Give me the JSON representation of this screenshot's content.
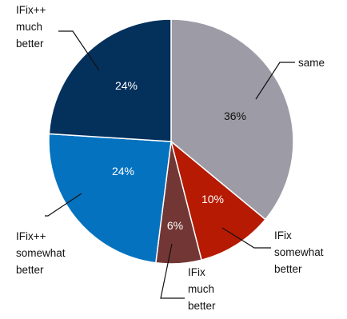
{
  "chart_data": {
    "type": "pie",
    "title": "",
    "start_angle_deg": 0,
    "direction": "clockwise",
    "slices": [
      {
        "label_lines": [
          "same"
        ],
        "value": 36,
        "value_label": "36%",
        "color": "#9d9ca6",
        "text_color": "#111111"
      },
      {
        "label_lines": [
          "IFix",
          "somewhat",
          "better"
        ],
        "value": 10,
        "value_label": "10%",
        "color": "#b61a02",
        "text_color": "#ffffff"
      },
      {
        "label_lines": [
          "IFix",
          "much",
          "better"
        ],
        "value": 6,
        "value_label": "6%",
        "color": "#723734",
        "text_color": "#ffffff"
      },
      {
        "label_lines": [
          "IFix++",
          "somewhat",
          "better"
        ],
        "value": 24,
        "value_label": "24%",
        "color": "#0472bf",
        "text_color": "#ffffff"
      },
      {
        "label_lines": [
          "IFix++",
          "much",
          "better"
        ],
        "value": 24,
        "value_label": "24%",
        "color": "#04305c",
        "text_color": "#ffffff"
      }
    ]
  }
}
